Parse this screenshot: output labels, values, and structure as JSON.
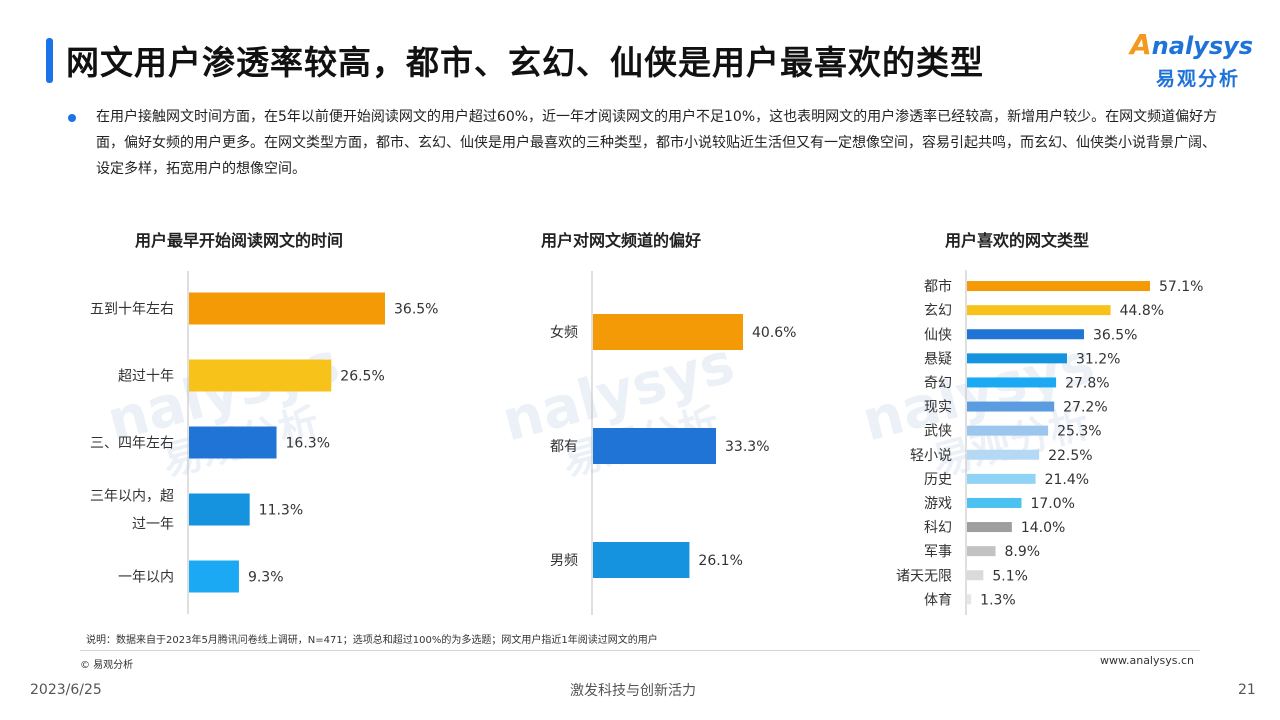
{
  "header": {
    "title": "网文用户渗透率较高，都市、玄幻、仙侠是用户最喜欢的类型",
    "logo_top": "nalysys",
    "logo_a": "A",
    "logo_cn": "易观分析"
  },
  "summary": "在用户接触网文时间方面，在5年以前便开始阅读网文的用户超过60%，近一年才阅读网文的用户不足10%，这也表明网文的用户渗透率已经较高，新增用户较少。在网文频道偏好方面，偏好女频的用户更多。在网文类型方面，都市、玄幻、仙侠是用户最喜欢的三种类型，都市小说较贴近生活但又有一定想像空间，容易引起共鸣，而玄幻、仙侠类小说背景广阔、设定多样，拓宽用户的想像空间。",
  "watermark": {
    "en": "nalysys",
    "cn": "易观分析"
  },
  "chart_data": [
    {
      "type": "bar",
      "orientation": "horizontal",
      "title": "用户最早开始阅读网文的时间",
      "categories": [
        "五到十年左右",
        "超过十年",
        "三、四年左右",
        "三年以内，超过一年",
        "一年以内"
      ],
      "category_lines": [
        [
          "五到十年左右"
        ],
        [
          "超过十年"
        ],
        [
          "三、四年左右"
        ],
        [
          "三年以内，超",
          "过一年"
        ],
        [
          "一年以内"
        ]
      ],
      "values": [
        36.5,
        26.5,
        16.3,
        11.3,
        9.3
      ],
      "value_labels": [
        "36.5%",
        "26.5%",
        "16.3%",
        "11.3%",
        "9.3%"
      ],
      "colors": [
        "#f59a07",
        "#f7c21a",
        "#1f74d6",
        "#1593de",
        "#1aa9f2"
      ],
      "xlim": [
        0,
        50
      ]
    },
    {
      "type": "bar",
      "orientation": "horizontal",
      "title": "用户对网文频道的偏好",
      "categories": [
        "女频",
        "都有",
        "男频"
      ],
      "category_lines": [
        [
          "女频"
        ],
        [
          "都有"
        ],
        [
          "男频"
        ]
      ],
      "values": [
        40.6,
        33.3,
        26.1
      ],
      "value_labels": [
        "40.6%",
        "33.3%",
        "26.1%"
      ],
      "colors": [
        "#f59a07",
        "#1f74d6",
        "#1593de"
      ],
      "xlim": [
        0,
        50
      ]
    },
    {
      "type": "bar",
      "orientation": "horizontal",
      "title": "用户喜欢的网文类型",
      "categories": [
        "都市",
        "玄幻",
        "仙侠",
        "悬疑",
        "奇幻",
        "现实",
        "武侠",
        "轻小说",
        "历史",
        "游戏",
        "科幻",
        "军事",
        "诸天无限",
        "体育"
      ],
      "category_lines": [
        [
          "都市"
        ],
        [
          "玄幻"
        ],
        [
          "仙侠"
        ],
        [
          "悬疑"
        ],
        [
          "奇幻"
        ],
        [
          "现实"
        ],
        [
          "武侠"
        ],
        [
          "轻小说"
        ],
        [
          "历史"
        ],
        [
          "游戏"
        ],
        [
          "科幻"
        ],
        [
          "军事"
        ],
        [
          "诸天无限"
        ],
        [
          "体育"
        ]
      ],
      "values": [
        57.1,
        44.8,
        36.5,
        31.2,
        27.8,
        27.2,
        25.3,
        22.5,
        21.4,
        17.0,
        14.0,
        8.9,
        5.1,
        1.3
      ],
      "value_labels": [
        "57.1%",
        "44.8%",
        "36.5%",
        "31.2%",
        "27.8%",
        "27.2%",
        "25.3%",
        "22.5%",
        "21.4%",
        "17.0%",
        "14.0%",
        "8.9%",
        "5.1%",
        "1.3%"
      ],
      "colors": [
        "#f59a07",
        "#f7c21a",
        "#1f74d6",
        "#1593de",
        "#1aa9f2",
        "#5b9be0",
        "#9cc6ee",
        "#b5d9f4",
        "#8fd3f5",
        "#4cc2f2",
        "#9e9e9e",
        "#c2c2c2",
        "#dadada",
        "#e6e6e6"
      ],
      "xlim": [
        0,
        60
      ]
    }
  ],
  "footer": {
    "note": "说明：数据来自于2023年5月腾讯问卷线上调研，N=471；选项总和超过100%的为多选题；网文用户指近1年阅读过网文的用户",
    "copyright": "© 易观分析",
    "site": "www.analysys.cn",
    "date": "2023/6/25",
    "slogan": "激发科技与创新活力",
    "page": "21"
  }
}
